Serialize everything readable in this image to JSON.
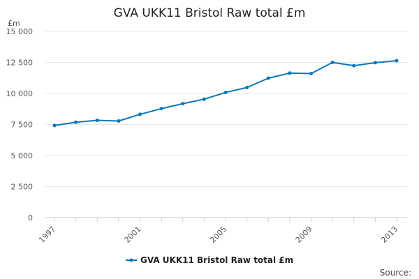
{
  "chart_data": {
    "type": "line",
    "title": "GVA UKK11 Bristol Raw total £m",
    "ylabel": "£m",
    "xlabel": "",
    "x": [
      1997,
      1998,
      1999,
      2000,
      2001,
      2002,
      2003,
      2004,
      2005,
      2006,
      2007,
      2008,
      2009,
      2010,
      2011,
      2012,
      2013
    ],
    "series": [
      {
        "name": "GVA UKK11 Bristol Raw total £m",
        "color": "#0a77b8",
        "values": [
          7420,
          7680,
          7840,
          7780,
          8320,
          8780,
          9180,
          9540,
          10080,
          10480,
          11230,
          11640,
          11600,
          12500,
          12240,
          12480,
          12640
        ]
      }
    ],
    "ylim": [
      0,
      15000
    ],
    "yticks": [
      0,
      2500,
      5000,
      7500,
      10000,
      12500,
      15000
    ],
    "ytick_labels": [
      "0",
      "2 500",
      "5 000",
      "7 500",
      "10 000",
      "12 500",
      "15 000"
    ],
    "xticks": [
      1997,
      2001,
      2005,
      2009,
      2013
    ],
    "xtick_labels": [
      "1997",
      "2001",
      "2005",
      "2009",
      "2013"
    ],
    "grid": true,
    "legend_position": "bottom-center"
  },
  "footer": {
    "source_label": "Source:"
  }
}
